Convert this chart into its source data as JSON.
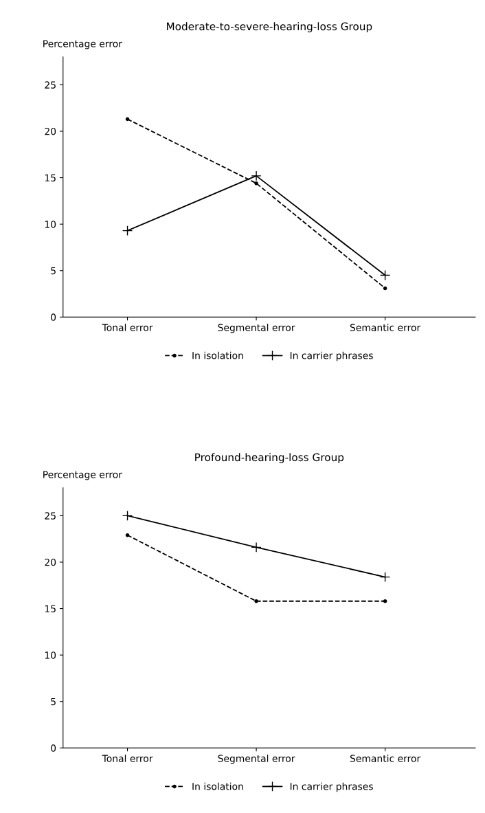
{
  "chart_data": [
    {
      "type": "line",
      "title": "Moderate-to-severe-hearing-loss Group",
      "ylabel": "Percentage error",
      "categories": [
        "Tonal error",
        "Segmental error",
        "Semantic error"
      ],
      "ylim": [
        0,
        28
      ],
      "yticks": [
        0,
        5,
        10,
        15,
        20,
        25
      ],
      "grid": false,
      "legend": "bottom",
      "series": [
        {
          "name": "In isolation",
          "color": "#000000",
          "values": [
            21.3,
            14.4,
            3.1
          ],
          "line_style": "dashed",
          "marker": "circle"
        },
        {
          "name": "In carrier phrases",
          "color": "#000000",
          "values": [
            9.3,
            15.2,
            4.5
          ],
          "line_style": "solid",
          "marker": "cross"
        }
      ]
    },
    {
      "type": "line",
      "title": "Profound-hearing-loss Group",
      "ylabel": "Percentage error",
      "categories": [
        "Tonal error",
        "Segmental error",
        "Semantic error"
      ],
      "ylim": [
        0,
        28
      ],
      "yticks": [
        0,
        5,
        10,
        15,
        20,
        25
      ],
      "grid": false,
      "legend": "bottom",
      "series": [
        {
          "name": "In isolation",
          "color": "#000000",
          "values": [
            22.9,
            15.8,
            15.8
          ],
          "line_style": "dashed",
          "marker": "circle"
        },
        {
          "name": "In carrier phrases",
          "color": "#000000",
          "values": [
            25.0,
            21.6,
            18.4
          ],
          "line_style": "solid",
          "marker": "cross"
        }
      ]
    }
  ]
}
